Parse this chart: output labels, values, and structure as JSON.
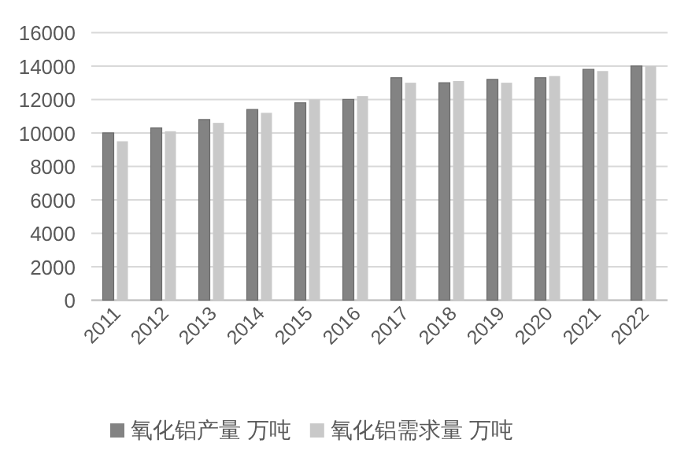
{
  "chart_data": {
    "type": "bar",
    "categories": [
      "2011",
      "2012",
      "2013",
      "2014",
      "2015",
      "2016",
      "2017",
      "2018",
      "2019",
      "2020",
      "2021",
      "2022"
    ],
    "series": [
      {
        "name": "氧化铝产量 万吨",
        "color": "#838383",
        "values": [
          10000,
          10300,
          10800,
          11400,
          11800,
          12000,
          13300,
          13000,
          13200,
          13300,
          13800,
          14000
        ]
      },
      {
        "name": "氧化铝需求量 万吨",
        "color": "#c9c9c9",
        "values": [
          9500,
          10100,
          10600,
          11200,
          12000,
          12200,
          13000,
          13100,
          13000,
          13400,
          13700,
          14000
        ]
      }
    ],
    "ylim": [
      0,
      16000
    ],
    "yticks": [
      0,
      2000,
      4000,
      6000,
      8000,
      10000,
      12000,
      14000,
      16000
    ],
    "grid": "y",
    "legend": "bottom"
  }
}
